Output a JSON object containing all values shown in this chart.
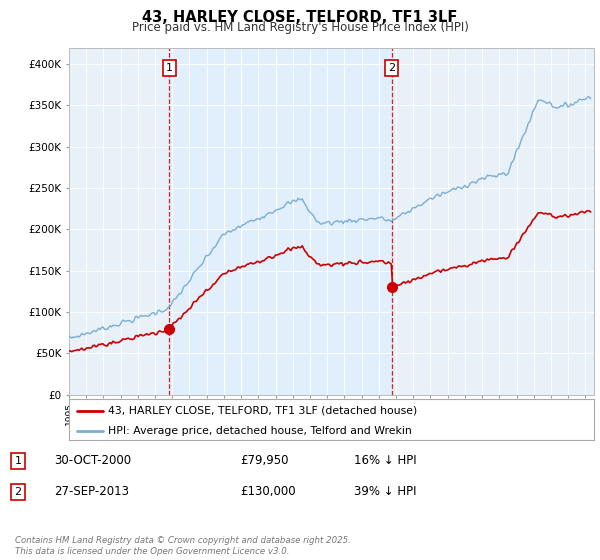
{
  "title": "43, HARLEY CLOSE, TELFORD, TF1 3LF",
  "subtitle": "Price paid vs. HM Land Registry's House Price Index (HPI)",
  "legend_label_red": "43, HARLEY CLOSE, TELFORD, TF1 3LF (detached house)",
  "legend_label_blue": "HPI: Average price, detached house, Telford and Wrekin",
  "annotation1": {
    "label": "1",
    "date_str": "30-OCT-2000",
    "price_str": "£79,950",
    "note": "16% ↓ HPI",
    "year": 2000.83,
    "price": 79950
  },
  "annotation2": {
    "label": "2",
    "date_str": "27-SEP-2013",
    "price_str": "£130,000",
    "note": "39% ↓ HPI",
    "year": 2013.75,
    "price": 130000
  },
  "copyright": "Contains HM Land Registry data © Crown copyright and database right 2025.\nThis data is licensed under the Open Government Licence v3.0.",
  "ylim": [
    0,
    420000
  ],
  "xlim": [
    1995.0,
    2025.5
  ],
  "red_color": "#cc0000",
  "blue_color": "#7aafd4",
  "vline_color": "#cc0000",
  "shade_color": "#ddeeff",
  "background_color": "#ffffff",
  "plot_bg": "#e8f0f8"
}
